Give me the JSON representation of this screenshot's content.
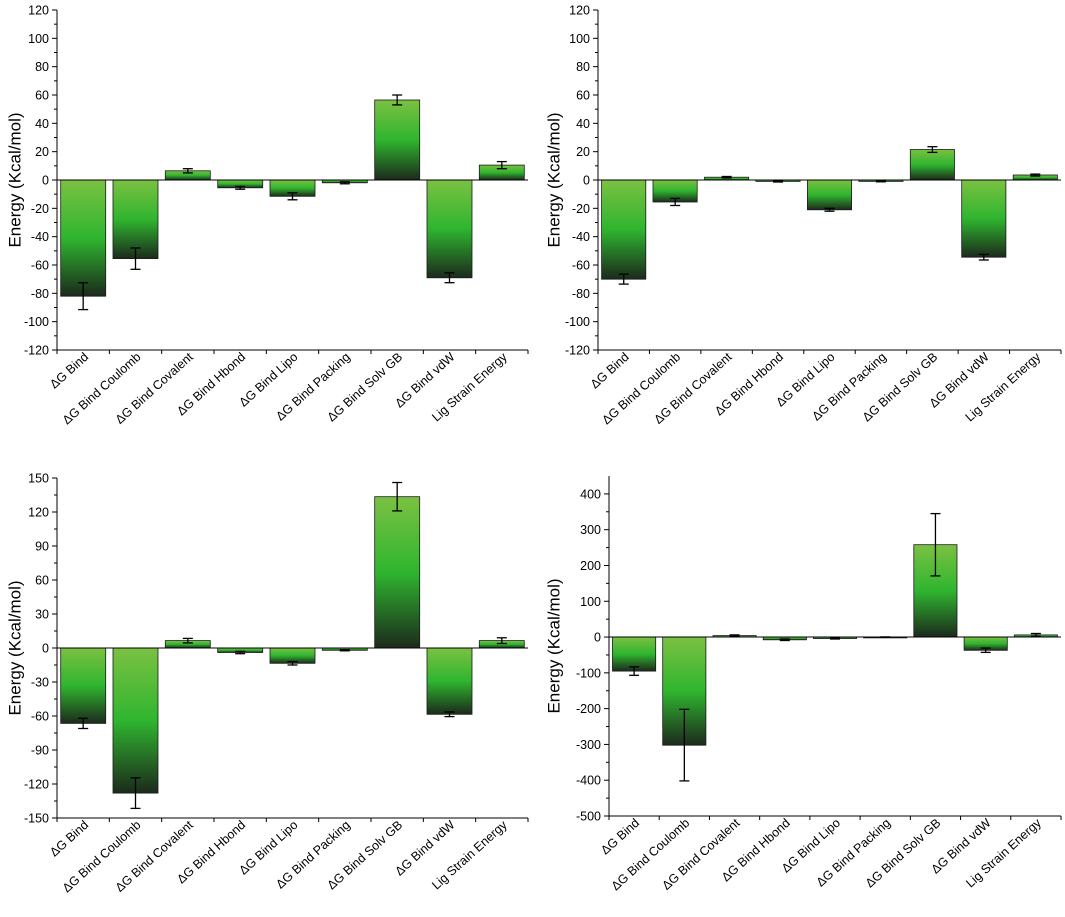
{
  "colors": {
    "bar_top": "#7bc142",
    "bar_mid": "#2fb52f",
    "bar_bottom": "#1c2a1c",
    "axis": "#000000",
    "error": "#000000"
  },
  "chart_data": [
    {
      "type": "bar",
      "ylabel": "Energy (Kcal/mol)",
      "ylim": [
        -120,
        120
      ],
      "yticks": [
        -120,
        -100,
        -80,
        -60,
        -40,
        -20,
        0,
        20,
        40,
        60,
        80,
        100,
        120
      ],
      "categories": [
        "ΔG Bind",
        "ΔG Bind Coulomb",
        "ΔG Bind Covalent",
        "ΔG Bind Hbond",
        "ΔG Bind Lipo",
        "ΔG Bind Packing",
        "ΔG Bind Solv GB",
        "ΔG Bind vdW",
        "Lig Strain Energy"
      ],
      "values": [
        -82,
        -55.5,
        6.5,
        -5.5,
        -11.5,
        -2,
        56.5,
        -69,
        10.5
      ],
      "errors": [
        9.5,
        7.5,
        1.5,
        1,
        2.5,
        0.7,
        3.5,
        3.5,
        2.5
      ]
    },
    {
      "type": "bar",
      "ylabel": "Energy (Kcal/mol)",
      "ylim": [
        -120,
        120
      ],
      "yticks": [
        -120,
        -100,
        -80,
        -60,
        -40,
        -20,
        0,
        20,
        40,
        60,
        80,
        100,
        120
      ],
      "categories": [
        "ΔG Bind",
        "ΔG Bind Coulomb",
        "ΔG Bind Covalent",
        "ΔG Bind Hbond",
        "ΔG Bind Lipo",
        "ΔG Bind Packing",
        "ΔG Bind Solv GB",
        "ΔG Bind vdW",
        "Lig Strain Energy"
      ],
      "values": [
        -70,
        -15.5,
        2,
        -1,
        -21,
        -1,
        21.5,
        -54.5,
        3.5
      ],
      "errors": [
        3.5,
        2.5,
        0.5,
        0.4,
        1,
        0.3,
        2,
        2,
        0.7
      ]
    },
    {
      "type": "bar",
      "ylabel": "Energy (Kcal/mol)",
      "ylim": [
        -150,
        150
      ],
      "yticks": [
        -150,
        -120,
        -90,
        -60,
        -30,
        0,
        30,
        60,
        90,
        120,
        150
      ],
      "categories": [
        "ΔG Bind",
        "ΔG Bind Coulomb",
        "ΔG Bind Covalent",
        "ΔG Bind Hbond",
        "ΔG Bind Lipo",
        "ΔG Bind Packing",
        "ΔG Bind Solv GB",
        "ΔG Bind vdW",
        "Lig Strain Energy"
      ],
      "values": [
        -66.5,
        -128,
        6.5,
        -4,
        -13.5,
        -2,
        133.5,
        -58.5,
        6.5
      ],
      "errors": [
        4.5,
        13.5,
        2,
        1,
        1.5,
        0.5,
        12.5,
        2,
        2.5
      ]
    },
    {
      "type": "bar",
      "ylabel": "Energy (Kcal/mol)",
      "ylim": [
        -500,
        450
      ],
      "yticks": [
        -500,
        -400,
        -300,
        -200,
        -100,
        0,
        100,
        200,
        300,
        400
      ],
      "categories": [
        "ΔG Bind",
        "ΔG Bind Coulomb",
        "ΔG Bind Covalent",
        "ΔG Bind Hbond",
        "ΔG Bind Lipo",
        "ΔG Bind Packing",
        "ΔG Bind Solv GB",
        "ΔG Bind vdW",
        "Lig Strain Energy"
      ],
      "values": [
        -95,
        -302,
        4,
        -7.5,
        -4,
        0,
        258,
        -37,
        6
      ],
      "errors": [
        12,
        100,
        2,
        2,
        1.5,
        0.5,
        87,
        6,
        4
      ]
    }
  ]
}
